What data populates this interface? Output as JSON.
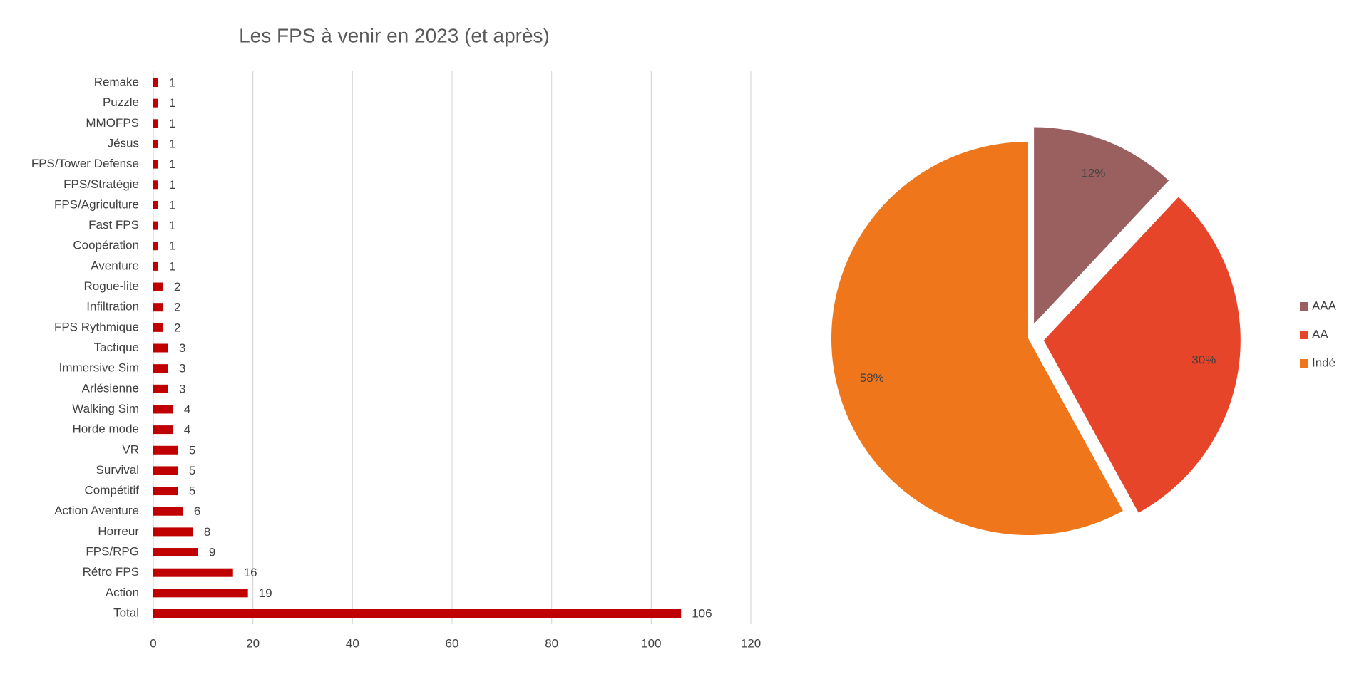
{
  "chart_data": [
    {
      "type": "barh",
      "title": "Les FPS à venir en 2023 (et après)",
      "categories": [
        "Remake",
        "Puzzle",
        "MMOFPS",
        "Jésus",
        "FPS/Tower Defense",
        "FPS/Stratégie",
        "FPS/Agriculture",
        "Fast FPS",
        "Coopération",
        "Aventure",
        "Rogue-lite",
        "Infiltration",
        "FPS Rythmique",
        "Tactique",
        "Immersive Sim",
        "Arlésienne",
        "Walking Sim",
        "Horde mode",
        "VR",
        "Survival",
        "Compétitif",
        "Action Aventure",
        "Horreur",
        "FPS/RPG",
        "Rétro FPS",
        "Action",
        "Total"
      ],
      "values": [
        1,
        1,
        1,
        1,
        1,
        1,
        1,
        1,
        1,
        1,
        2,
        2,
        2,
        3,
        3,
        3,
        4,
        4,
        5,
        5,
        5,
        6,
        8,
        9,
        16,
        19,
        106
      ],
      "color": "#c00000",
      "xlim": [
        0,
        120
      ],
      "xticks": [
        0,
        20,
        40,
        60,
        80,
        100,
        120
      ],
      "grid": true
    },
    {
      "type": "pie",
      "categories": [
        "AAA",
        "AA",
        "Indé"
      ],
      "values": [
        12,
        30,
        58
      ],
      "value_labels": [
        "12%",
        "30%",
        "58%"
      ],
      "colors": [
        "#9a6060",
        "#e6452a",
        "#f0761c"
      ],
      "exploded": [
        true,
        true,
        false
      ],
      "legend": "right"
    }
  ]
}
